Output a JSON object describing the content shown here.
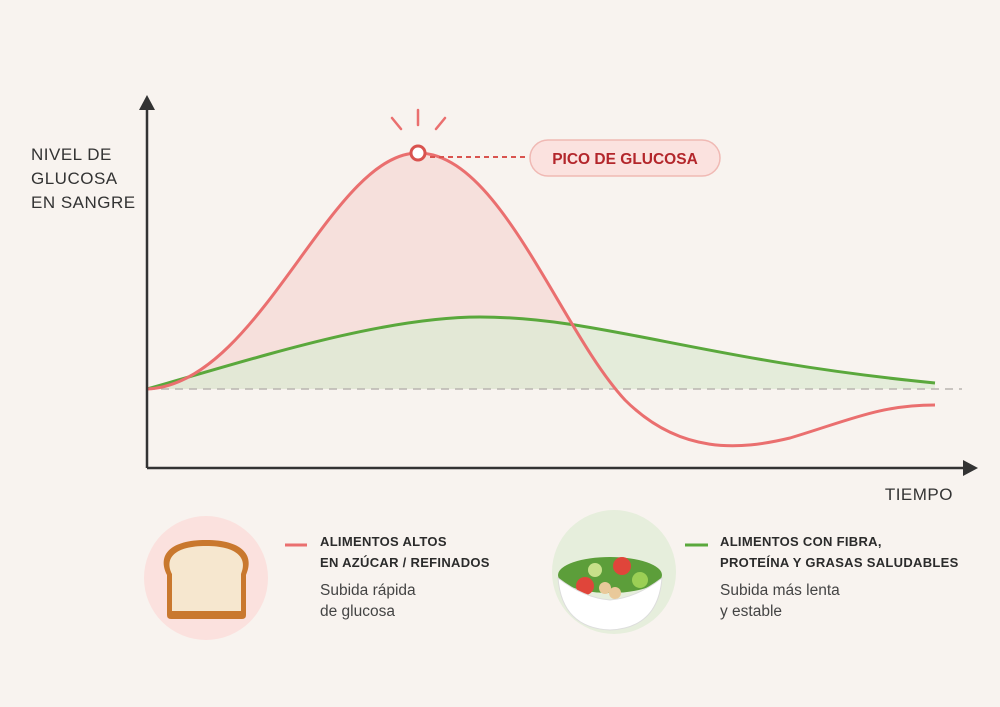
{
  "axes": {
    "y_label": [
      "NIVEL DE",
      "GLUCOSA",
      "EN SANGRE"
    ],
    "x_label": "TIEMPO"
  },
  "annotation": "PICO DE GLUCOSA",
  "legend": [
    {
      "title": [
        "ALIMENTOS ALTOS",
        "EN AZÚCAR / REFINADOS"
      ],
      "description": [
        "Subida rápida",
        "de glucosa"
      ]
    },
    {
      "title": [
        "ALIMENTOS CON FIBRA,",
        "PROTEÍNA Y GRASAS SALUDABLES"
      ],
      "description": [
        "Subida más lenta",
        "y estable"
      ]
    }
  ]
}
